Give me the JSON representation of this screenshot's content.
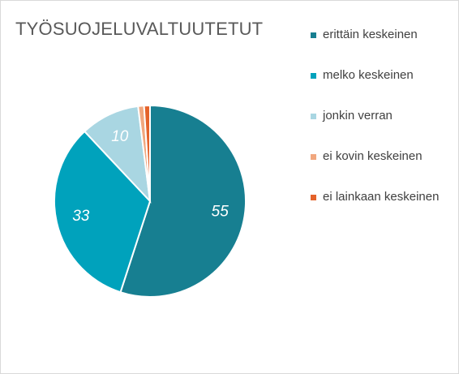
{
  "chart_data": {
    "type": "pie",
    "title": "TYÖSUOJELUVALTUUTETUT",
    "legend_position": "right",
    "series": [
      {
        "name": "erittäin keskeinen",
        "value": 55,
        "label": "55",
        "color": "#177f91"
      },
      {
        "name": "melko keskeinen",
        "value": 33,
        "label": "33",
        "color": "#00a2bc"
      },
      {
        "name": "jonkin verran",
        "value": 10,
        "label": "10",
        "color": "#a9d6e2"
      },
      {
        "name": "ei kovin keskeinen",
        "value": 1,
        "label": "",
        "color": "#f1a77e"
      },
      {
        "name": "ei lainkaan keskeinen",
        "value": 1,
        "label": "",
        "color": "#e4622a"
      }
    ]
  }
}
